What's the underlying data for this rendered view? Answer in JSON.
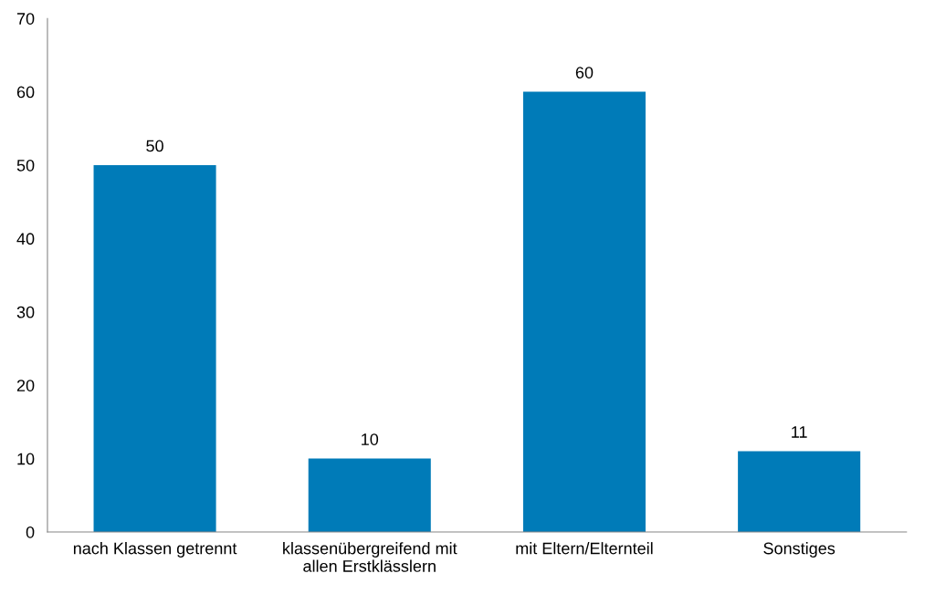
{
  "chart_data": {
    "type": "bar",
    "categories": [
      "nach Klassen getrennt",
      "klassenübergreifend mit\nallen Erstklässlern",
      "mit Eltern/Elternteil",
      "Sonstiges"
    ],
    "values": [
      50,
      10,
      60,
      11
    ],
    "color": "#007bb8",
    "ylim": [
      0,
      70
    ],
    "yticks": [
      0,
      10,
      20,
      30,
      40,
      50,
      60,
      70
    ],
    "data_labels": true,
    "grid": false,
    "legend": false
  }
}
